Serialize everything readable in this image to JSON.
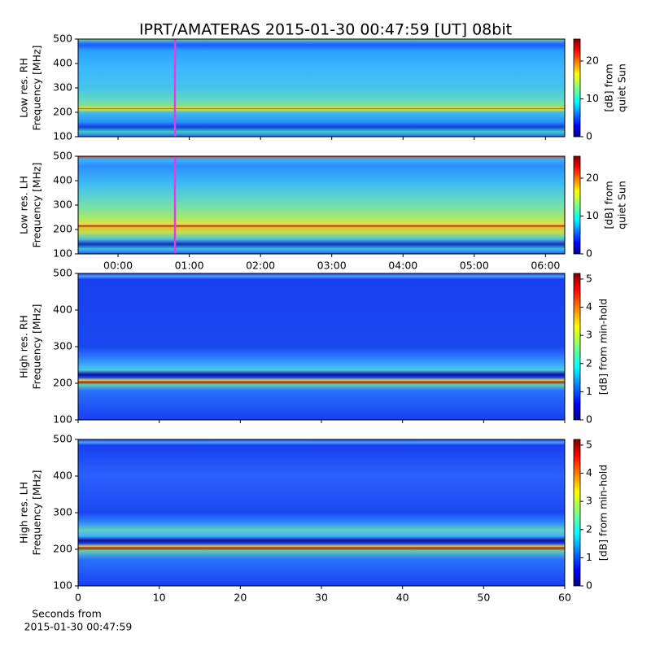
{
  "title": "IPRT/AMATERAS 2015-01-30 00:47:59 [UT]   08bit",
  "x_label": [
    "Seconds from",
    "2015-01-30 00:47:59"
  ],
  "chart_data": [
    {
      "type": "heatmap",
      "ylabel": [
        "Low res. RH",
        "Frequency [MHz]"
      ],
      "colorbar_label": [
        "[dB] from",
        "quiet Sun"
      ],
      "xlim": [
        -0.56,
        6.27
      ],
      "xticks": [
        0,
        1,
        2,
        3,
        4,
        5,
        6
      ],
      "xticklabels": false,
      "ylim": [
        100,
        500
      ],
      "yticks": [
        100,
        200,
        300,
        400,
        500
      ],
      "clim": [
        0,
        25.8
      ],
      "cticks": [
        0,
        10,
        20
      ],
      "cursor_x": 0.7997,
      "cursor_color": "#e040e0"
    },
    {
      "type": "heatmap",
      "ylabel": [
        "Low res. LH",
        "Frequency [MHz]"
      ],
      "colorbar_label": [
        "[dB] from",
        "quiet Sun"
      ],
      "xlim": [
        -0.56,
        6.27
      ],
      "xticks": [
        {
          "value": 0,
          "label": "00:00"
        },
        {
          "value": 1,
          "label": "01:00"
        },
        {
          "value": 2,
          "label": "02:00"
        },
        {
          "value": 3,
          "label": "03:00"
        },
        {
          "value": 4,
          "label": "04:00"
        },
        {
          "value": 5,
          "label": "05:00"
        },
        {
          "value": 6,
          "label": "06:00"
        }
      ],
      "ylim": [
        100,
        500
      ],
      "yticks": [
        100,
        200,
        300,
        400,
        500
      ],
      "clim": [
        0,
        25.8
      ],
      "cticks": [
        0,
        10,
        20
      ],
      "cursor_x": 0.7997,
      "cursor_color": "#e040e0"
    },
    {
      "type": "heatmap",
      "ylabel": [
        "High res. RH",
        "Frequency [MHz]"
      ],
      "colorbar_label": [
        "[dB] from min-hold"
      ],
      "xlim": [
        0,
        60
      ],
      "xticks": [
        0,
        10,
        20,
        30,
        40,
        50,
        60
      ],
      "xticklabels": false,
      "ylim": [
        100,
        500
      ],
      "yticks": [
        100,
        200,
        300,
        400,
        500
      ],
      "clim": [
        0,
        5.2
      ],
      "cticks": [
        0,
        1,
        2,
        3,
        4,
        5
      ]
    },
    {
      "type": "heatmap",
      "ylabel": [
        "High res. LH",
        "Frequency [MHz]"
      ],
      "colorbar_label": [
        "[dB] from min-hold"
      ],
      "xlim": [
        0,
        60
      ],
      "xticks": [
        0,
        10,
        20,
        30,
        40,
        50,
        60
      ],
      "ylim": [
        100,
        500
      ],
      "yticks": [
        100,
        200,
        300,
        400,
        500
      ],
      "clim": [
        0,
        5.2
      ],
      "cticks": [
        0,
        1,
        2,
        3,
        4,
        5
      ]
    }
  ]
}
